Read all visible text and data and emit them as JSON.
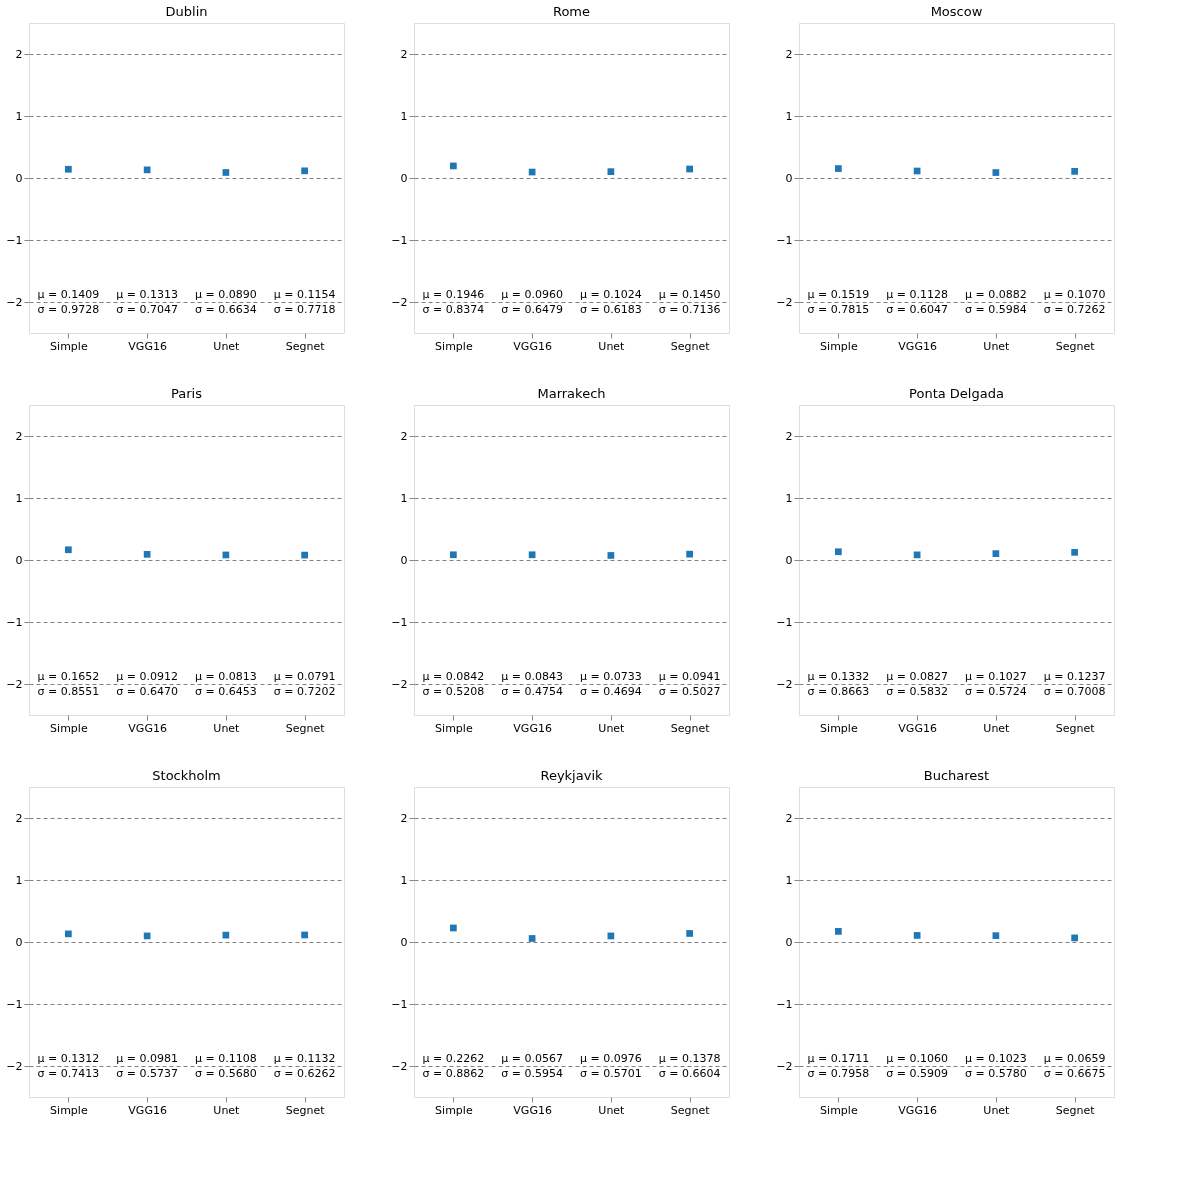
{
  "chart_data": [
    {
      "type": "scatter",
      "title": "Dublin",
      "categories": [
        "Simple",
        "VGG16",
        "Unet",
        "Segnet"
      ],
      "series": [
        {
          "color": "#1f77b4",
          "values": [
            0.1409,
            0.1313,
            0.089,
            0.1154
          ]
        }
      ],
      "marker": "square",
      "ylim": [
        -2.5,
        2.5
      ],
      "yticks": [
        -2,
        -1,
        0,
        1,
        2
      ],
      "grid": "y",
      "annotations": [
        "μ = 0.1409",
        "μ = 0.1313",
        "μ = 0.0890",
        "μ = 0.1154",
        "σ = 0.9728",
        "σ = 0.7047",
        "σ = 0.6634",
        "σ = 0.7718"
      ]
    },
    {
      "type": "scatter",
      "title": "Rome",
      "categories": [
        "Simple",
        "VGG16",
        "Unet",
        "Segnet"
      ],
      "series": [
        {
          "color": "#1f77b4",
          "values": [
            0.1946,
            0.096,
            0.1024,
            0.145
          ]
        }
      ],
      "marker": "square",
      "ylim": [
        -2.5,
        2.5
      ],
      "yticks": [
        -2,
        -1,
        0,
        1,
        2
      ],
      "grid": "y",
      "annotations": [
        "μ = 0.1946",
        "μ = 0.0960",
        "μ = 0.1024",
        "μ = 0.1450",
        "σ = 0.8374",
        "σ = 0.6479",
        "σ = 0.6183",
        "σ = 0.7136"
      ]
    },
    {
      "type": "scatter",
      "title": "Moscow",
      "categories": [
        "Simple",
        "VGG16",
        "Unet",
        "Segnet"
      ],
      "series": [
        {
          "color": "#1f77b4",
          "values": [
            0.1519,
            0.1128,
            0.0882,
            0.107
          ]
        }
      ],
      "marker": "square",
      "ylim": [
        -2.5,
        2.5
      ],
      "yticks": [
        -2,
        -1,
        0,
        1,
        2
      ],
      "grid": "y",
      "annotations": [
        "μ = 0.1519",
        "μ = 0.1128",
        "μ = 0.0882",
        "μ = 0.1070",
        "σ = 0.7815",
        "σ = 0.6047",
        "σ = 0.5984",
        "σ = 0.7262"
      ]
    },
    {
      "type": "scatter",
      "title": "Paris",
      "categories": [
        "Simple",
        "VGG16",
        "Unet",
        "Segnet"
      ],
      "series": [
        {
          "color": "#1f77b4",
          "values": [
            0.1652,
            0.0912,
            0.0813,
            0.0791
          ]
        }
      ],
      "marker": "square",
      "ylim": [
        -2.5,
        2.5
      ],
      "yticks": [
        -2,
        -1,
        0,
        1,
        2
      ],
      "grid": "y",
      "annotations": [
        "μ = 0.1652",
        "μ = 0.0912",
        "μ = 0.0813",
        "μ = 0.0791",
        "σ = 0.8551",
        "σ = 0.6470",
        "σ = 0.6453",
        "σ = 0.7202"
      ]
    },
    {
      "type": "scatter",
      "title": "Marrakech",
      "categories": [
        "Simple",
        "VGG16",
        "Unet",
        "Segnet"
      ],
      "series": [
        {
          "color": "#1f77b4",
          "values": [
            0.0842,
            0.0843,
            0.0733,
            0.0941
          ]
        }
      ],
      "marker": "square",
      "ylim": [
        -2.5,
        2.5
      ],
      "yticks": [
        -2,
        -1,
        0,
        1,
        2
      ],
      "grid": "y",
      "annotations": [
        "μ = 0.0842",
        "μ = 0.0843",
        "μ = 0.0733",
        "μ = 0.0941",
        "σ = 0.5208",
        "σ = 0.4754",
        "σ = 0.4694",
        "σ = 0.5027"
      ]
    },
    {
      "type": "scatter",
      "title": "Ponta Delgada",
      "categories": [
        "Simple",
        "VGG16",
        "Unet",
        "Segnet"
      ],
      "series": [
        {
          "color": "#1f77b4",
          "values": [
            0.1332,
            0.0827,
            0.1027,
            0.1237
          ]
        }
      ],
      "marker": "square",
      "ylim": [
        -2.5,
        2.5
      ],
      "yticks": [
        -2,
        -1,
        0,
        1,
        2
      ],
      "grid": "y",
      "annotations": [
        "μ = 0.1332",
        "μ = 0.0827",
        "μ = 0.1027",
        "μ = 0.1237",
        "σ = 0.8663",
        "σ = 0.5832",
        "σ = 0.5724",
        "σ = 0.7008"
      ]
    },
    {
      "type": "scatter",
      "title": "Stockholm",
      "categories": [
        "Simple",
        "VGG16",
        "Unet",
        "Segnet"
      ],
      "series": [
        {
          "color": "#1f77b4",
          "values": [
            0.1312,
            0.0981,
            0.1108,
            0.1132
          ]
        }
      ],
      "marker": "square",
      "ylim": [
        -2.5,
        2.5
      ],
      "yticks": [
        -2,
        -1,
        0,
        1,
        2
      ],
      "grid": "y",
      "annotations": [
        "μ = 0.1312",
        "μ = 0.0981",
        "μ = 0.1108",
        "μ = 0.1132",
        "σ = 0.7413",
        "σ = 0.5737",
        "σ = 0.5680",
        "σ = 0.6262"
      ]
    },
    {
      "type": "scatter",
      "title": "Reykjavik",
      "categories": [
        "Simple",
        "VGG16",
        "Unet",
        "Segnet"
      ],
      "series": [
        {
          "color": "#1f77b4",
          "values": [
            0.2262,
            0.0567,
            0.0976,
            0.1378
          ]
        }
      ],
      "marker": "square",
      "ylim": [
        -2.5,
        2.5
      ],
      "yticks": [
        -2,
        -1,
        0,
        1,
        2
      ],
      "grid": "y",
      "annotations": [
        "μ = 0.2262",
        "μ = 0.0567",
        "μ = 0.0976",
        "μ = 0.1378",
        "σ = 0.8862",
        "σ = 0.5954",
        "σ = 0.5701",
        "σ = 0.6604"
      ]
    },
    {
      "type": "scatter",
      "title": "Bucharest",
      "categories": [
        "Simple",
        "VGG16",
        "Unet",
        "Segnet"
      ],
      "series": [
        {
          "color": "#1f77b4",
          "values": [
            0.1711,
            0.106,
            0.1023,
            0.0659
          ]
        }
      ],
      "marker": "square",
      "ylim": [
        -2.5,
        2.5
      ],
      "yticks": [
        -2,
        -1,
        0,
        1,
        2
      ],
      "grid": "y",
      "annotations": [
        "μ = 0.1711",
        "μ = 0.1060",
        "μ = 0.1023",
        "μ = 0.0659",
        "σ = 0.7958",
        "σ = 0.5909",
        "σ = 0.5780",
        "σ = 0.6675"
      ]
    }
  ]
}
